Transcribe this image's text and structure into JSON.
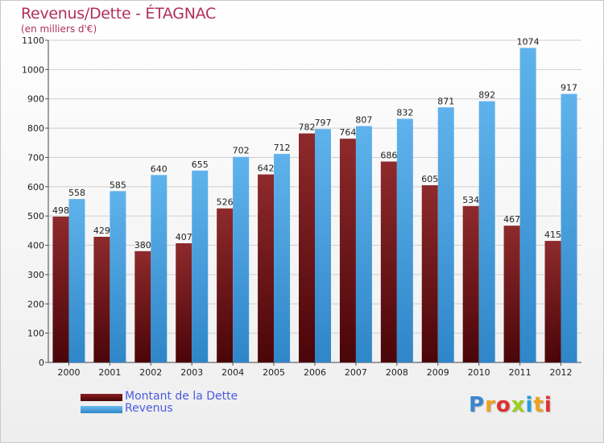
{
  "header": {
    "title": "Revenus/Dette - ÉTAGNAC",
    "subtitle": "(en milliers d'€)"
  },
  "legend": {
    "items": [
      {
        "label": "Montant de la Dette",
        "color": "#6b0d10"
      },
      {
        "label": "Revenus",
        "color": "#49a5e5"
      }
    ]
  },
  "logo": {
    "letters": [
      {
        "char": "P",
        "color": "#3a86d0"
      },
      {
        "char": "r",
        "color": "#f0a020"
      },
      {
        "char": "o",
        "color": "#e03030"
      },
      {
        "char": "x",
        "color": "#9bd020"
      },
      {
        "char": "i",
        "color": "#20a0e0"
      },
      {
        "char": "t",
        "color": "#f0a020"
      },
      {
        "char": "i",
        "color": "#e03030"
      }
    ]
  },
  "chart_data": {
    "type": "bar",
    "categories": [
      "2000",
      "2001",
      "2002",
      "2003",
      "2004",
      "2005",
      "2006",
      "2007",
      "2008",
      "2009",
      "2010",
      "2011",
      "2012"
    ],
    "series": [
      {
        "name": "Montant de la Dette",
        "color": "#6b0d10",
        "values": [
          498,
          429,
          380,
          407,
          526,
          642,
          782,
          764,
          686,
          605,
          534,
          467,
          415
        ]
      },
      {
        "name": "Revenus",
        "color": "#49a5e5",
        "values": [
          558,
          585,
          640,
          655,
          702,
          712,
          797,
          807,
          832,
          871,
          892,
          1074,
          917
        ]
      }
    ],
    "ylim": [
      0,
      1100
    ],
    "yticks": [
      0,
      100,
      200,
      300,
      400,
      500,
      600,
      700,
      800,
      900,
      1000,
      1100
    ],
    "grid": true
  }
}
